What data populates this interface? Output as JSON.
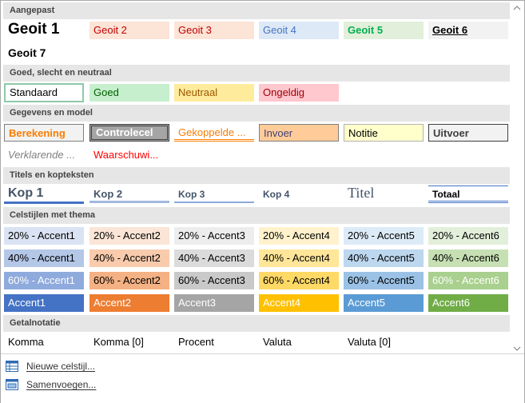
{
  "sections": {
    "custom": "Aangepast",
    "goodbad": "Goed, slecht en neutraal",
    "data": "Gegevens en model",
    "titles": "Titels en kopteksten",
    "themed": "Celstijlen met thema",
    "number": "Getalnotatie"
  },
  "custom": [
    "Geoit 1",
    "Geoit 2",
    "Geoit 3",
    "Geoit 4",
    "Geoit 5",
    "Geoit 6",
    "Geoit 7"
  ],
  "goodbad": [
    "Standaard",
    "Goed",
    "Neutraal",
    "Ongeldig"
  ],
  "data": [
    "Berekening",
    "Controlecel",
    "Gekoppelde ...",
    "Invoer",
    "Notitie",
    "Uitvoer",
    "Verklarende ...",
    "Waarschuwi..."
  ],
  "titles": [
    "Kop 1",
    "Kop 2",
    "Kop 3",
    "Kop 4",
    "Titel",
    "Totaal"
  ],
  "themed": {
    "row20": [
      "20% - Accent1",
      "20% - Accent2",
      "20% - Accent3",
      "20% - Accent4",
      "20% - Accent5",
      "20% - Accent6"
    ],
    "row40": [
      "40% - Accent1",
      "40% - Accent2",
      "40% - Accent3",
      "40% - Accent4",
      "40% - Accent5",
      "40% - Accent6"
    ],
    "row60": [
      "60% - Accent1",
      "60% - Accent2",
      "60% - Accent3",
      "60% - Accent4",
      "60% - Accent5",
      "60% - Accent6"
    ],
    "row100": [
      "Accent1",
      "Accent2",
      "Accent3",
      "Accent4",
      "Accent5",
      "Accent6"
    ]
  },
  "number": [
    "Komma",
    "Komma [0]",
    "Procent",
    "Valuta",
    "Valuta [0]"
  ],
  "footer": {
    "new_style": "Nieuwe celstijl...",
    "merge": "Samenvoegen..."
  },
  "colors": {
    "accent1": "#4472c4",
    "accent2": "#ed7d31",
    "accent3": "#a5a5a5",
    "accent4": "#ffc000",
    "accent5": "#5b9bd5",
    "accent6": "#70ad47"
  },
  "icons": [
    "new-style-icon",
    "merge-styles-icon",
    "scroll-up-icon",
    "scroll-down-icon"
  ]
}
